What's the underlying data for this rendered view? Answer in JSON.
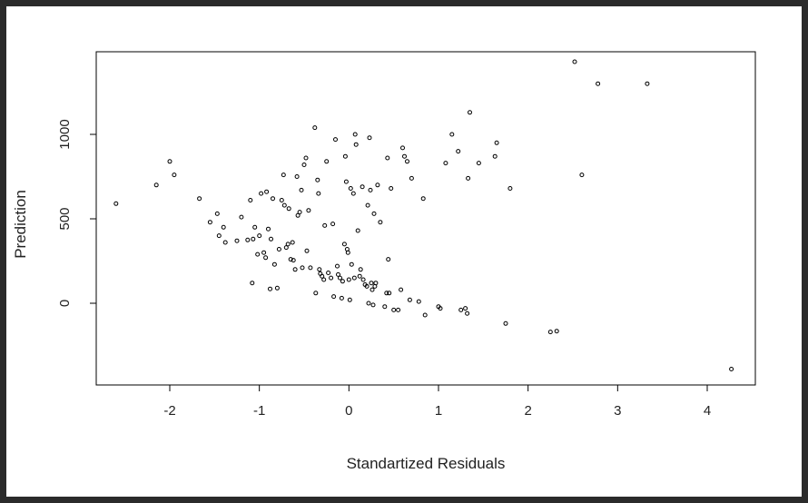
{
  "chart_data": {
    "type": "scatter",
    "title": "",
    "xlabel": "Standartized Residuals",
    "ylabel": "Prediction",
    "xlim": [
      -2.8,
      4.5
    ],
    "ylim": [
      -450,
      1500
    ],
    "xticks": [
      -2,
      -1,
      0,
      1,
      2,
      3,
      4
    ],
    "xtick_labels": [
      "-2",
      "-1",
      "0",
      "1",
      "2",
      "3",
      "4"
    ],
    "yticks": [
      0,
      500,
      1000
    ],
    "ytick_labels": [
      "0",
      "500",
      "1000"
    ],
    "grid": false,
    "legend": "none",
    "points": [
      [
        -2.6,
        590
      ],
      [
        -2.15,
        700
      ],
      [
        -2.0,
        840
      ],
      [
        -1.95,
        760
      ],
      [
        -1.67,
        620
      ],
      [
        -1.55,
        480
      ],
      [
        -1.47,
        530
      ],
      [
        -1.45,
        400
      ],
      [
        -1.4,
        450
      ],
      [
        -1.38,
        360
      ],
      [
        -1.25,
        370
      ],
      [
        -1.2,
        510
      ],
      [
        -1.13,
        375
      ],
      [
        -1.1,
        610
      ],
      [
        -1.08,
        120
      ],
      [
        -1.07,
        380
      ],
      [
        -1.05,
        450
      ],
      [
        -1.02,
        290
      ],
      [
        -1.0,
        400
      ],
      [
        -0.98,
        650
      ],
      [
        -0.95,
        300
      ],
      [
        -0.93,
        270
      ],
      [
        -0.92,
        660
      ],
      [
        -0.9,
        440
      ],
      [
        -0.88,
        85
      ],
      [
        -0.87,
        380
      ],
      [
        -0.85,
        620
      ],
      [
        -0.83,
        230
      ],
      [
        -0.8,
        90
      ],
      [
        -0.78,
        320
      ],
      [
        -0.75,
        610
      ],
      [
        -0.73,
        760
      ],
      [
        -0.72,
        580
      ],
      [
        -0.7,
        330
      ],
      [
        -0.68,
        350
      ],
      [
        -0.67,
        560
      ],
      [
        -0.65,
        260
      ],
      [
        -0.63,
        360
      ],
      [
        -0.62,
        255
      ],
      [
        -0.6,
        200
      ],
      [
        -0.58,
        750
      ],
      [
        -0.57,
        520
      ],
      [
        -0.55,
        540
      ],
      [
        -0.53,
        670
      ],
      [
        -0.52,
        210
      ],
      [
        -0.5,
        820
      ],
      [
        -0.48,
        860
      ],
      [
        -0.47,
        310
      ],
      [
        -0.45,
        550
      ],
      [
        -0.43,
        210
      ],
      [
        -0.38,
        1040
      ],
      [
        -0.37,
        60
      ],
      [
        -0.35,
        730
      ],
      [
        -0.34,
        650
      ],
      [
        -0.33,
        200
      ],
      [
        -0.32,
        175
      ],
      [
        -0.3,
        160
      ],
      [
        -0.28,
        140
      ],
      [
        -0.27,
        460
      ],
      [
        -0.25,
        840
      ],
      [
        -0.23,
        180
      ],
      [
        -0.2,
        150
      ],
      [
        -0.18,
        470
      ],
      [
        -0.17,
        40
      ],
      [
        -0.15,
        970
      ],
      [
        -0.13,
        220
      ],
      [
        -0.12,
        170
      ],
      [
        -0.1,
        150
      ],
      [
        -0.08,
        30
      ],
      [
        -0.07,
        130
      ],
      [
        -0.05,
        350
      ],
      [
        -0.04,
        870
      ],
      [
        -0.03,
        720
      ],
      [
        -0.02,
        320
      ],
      [
        -0.01,
        300
      ],
      [
        0.0,
        140
      ],
      [
        0.01,
        20
      ],
      [
        0.02,
        680
      ],
      [
        0.03,
        230
      ],
      [
        0.05,
        650
      ],
      [
        0.06,
        150
      ],
      [
        0.07,
        1000
      ],
      [
        0.08,
        940
      ],
      [
        0.1,
        430
      ],
      [
        0.12,
        160
      ],
      [
        0.13,
        200
      ],
      [
        0.15,
        690
      ],
      [
        0.16,
        140
      ],
      [
        0.18,
        110
      ],
      [
        0.2,
        100
      ],
      [
        0.21,
        580
      ],
      [
        0.22,
        0
      ],
      [
        0.23,
        980
      ],
      [
        0.24,
        670
      ],
      [
        0.25,
        120
      ],
      [
        0.26,
        80
      ],
      [
        0.27,
        -10
      ],
      [
        0.28,
        530
      ],
      [
        0.29,
        100
      ],
      [
        0.3,
        120
      ],
      [
        0.32,
        700
      ],
      [
        0.35,
        480
      ],
      [
        0.4,
        -20
      ],
      [
        0.42,
        60
      ],
      [
        0.43,
        860
      ],
      [
        0.44,
        260
      ],
      [
        0.45,
        60
      ],
      [
        0.47,
        680
      ],
      [
        0.5,
        -40
      ],
      [
        0.55,
        -40
      ],
      [
        0.58,
        80
      ],
      [
        0.6,
        920
      ],
      [
        0.62,
        870
      ],
      [
        0.65,
        840
      ],
      [
        0.68,
        20
      ],
      [
        0.7,
        740
      ],
      [
        0.78,
        10
      ],
      [
        0.83,
        620
      ],
      [
        0.85,
        -70
      ],
      [
        1.0,
        -20
      ],
      [
        1.02,
        -30
      ],
      [
        1.08,
        830
      ],
      [
        1.15,
        1000
      ],
      [
        1.22,
        900
      ],
      [
        1.25,
        -40
      ],
      [
        1.3,
        -30
      ],
      [
        1.32,
        -60
      ],
      [
        1.33,
        740
      ],
      [
        1.35,
        1130
      ],
      [
        1.45,
        830
      ],
      [
        1.63,
        870
      ],
      [
        1.65,
        950
      ],
      [
        1.75,
        -120
      ],
      [
        1.8,
        680
      ],
      [
        2.25,
        -170
      ],
      [
        2.32,
        -165
      ],
      [
        2.52,
        1430
      ],
      [
        2.6,
        760
      ],
      [
        2.78,
        1300
      ],
      [
        3.33,
        1300
      ],
      [
        4.27,
        -390
      ]
    ]
  }
}
